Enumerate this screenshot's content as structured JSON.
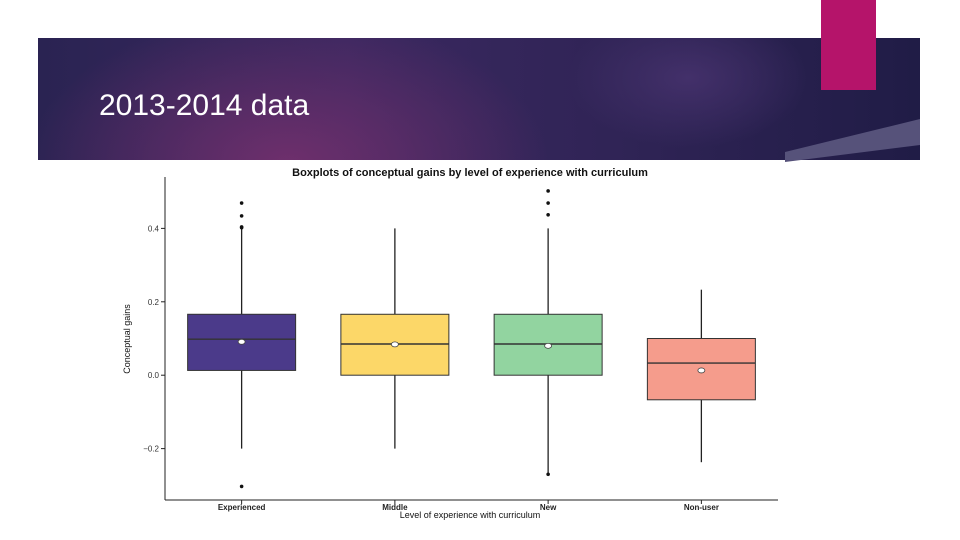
{
  "slide": {
    "title": "2013-2014 data"
  },
  "colors": {
    "banner": "#2a2352",
    "accent": "#b5146a"
  },
  "chart_data": {
    "type": "box",
    "title": "Boxplots of conceptual gains by level of experience with curriculum",
    "xlabel": "Level of experience with curriculum",
    "ylabel": "Conceptual gains",
    "categories": [
      "Experienced",
      "Middle",
      "New",
      "Non-user"
    ],
    "ylim": [
      -0.34,
      0.54
    ],
    "yticks": [
      {
        "value": 0.4,
        "label": "0.4"
      },
      {
        "value": 0.2,
        "label": "0.2"
      },
      {
        "value": 0.0,
        "label": "0.0"
      },
      {
        "value": -0.2,
        "label": "−0.2"
      }
    ],
    "boxes": [
      {
        "category": "Experienced",
        "color": "#4b3a8a",
        "whisker_low": -0.2,
        "q1": 0.013,
        "median": 0.098,
        "q3": 0.166,
        "whisker_high": 0.4,
        "mean": 0.091,
        "outliers": [
          0.469,
          0.434,
          0.404,
          0.402,
          -0.303
        ]
      },
      {
        "category": "Middle",
        "color": "#fcd768",
        "whisker_low": -0.2,
        "q1": 0.0,
        "median": 0.085,
        "q3": 0.166,
        "whisker_high": 0.4,
        "mean": 0.084,
        "outliers": []
      },
      {
        "category": "New",
        "color": "#92d4a0",
        "whisker_low": -0.27,
        "q1": 0.0,
        "median": 0.085,
        "q3": 0.166,
        "whisker_high": 0.4,
        "mean": 0.08,
        "outliers": [
          0.502,
          0.469,
          0.437,
          -0.27
        ]
      },
      {
        "category": "Non-user",
        "color": "#f59c8c",
        "whisker_low": -0.237,
        "q1": -0.067,
        "median": 0.033,
        "q3": 0.1,
        "whisker_high": 0.233,
        "mean": 0.013,
        "outliers": []
      }
    ]
  }
}
